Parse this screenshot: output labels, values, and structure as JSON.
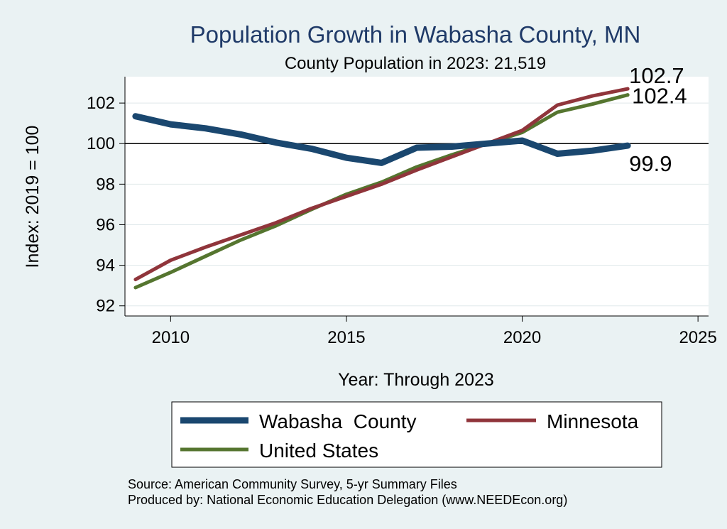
{
  "chart_data": {
    "type": "line",
    "title": "Population Growth in Wabasha County, MN",
    "subtitle": "County Population in 2023: 21,519",
    "xlabel": "Year: Through 2023",
    "ylabel": "Index: 2019 = 100",
    "xlim": [
      2008.7,
      2025.3
    ],
    "ylim": [
      91.5,
      103.3
    ],
    "x_ticks": [
      2010,
      2015,
      2020,
      2025
    ],
    "y_ticks": [
      92,
      94,
      96,
      98,
      100,
      102
    ],
    "reference_line": 100,
    "x": [
      2009,
      2010,
      2011,
      2012,
      2013,
      2014,
      2015,
      2016,
      2017,
      2018,
      2019,
      2020,
      2021,
      2022,
      2023
    ],
    "series": [
      {
        "name": "Wabasha  County",
        "color": "#1a476f",
        "end_label": "99.9",
        "values": [
          101.35,
          100.95,
          100.75,
          100.45,
          100.05,
          99.75,
          99.3,
          99.05,
          99.8,
          99.85,
          100.0,
          100.15,
          99.5,
          99.65,
          99.9
        ]
      },
      {
        "name": "Minnesota",
        "color": "#90353b",
        "end_label": "102.7",
        "values": [
          93.3,
          94.25,
          94.9,
          95.5,
          96.1,
          96.8,
          97.4,
          98.0,
          98.7,
          99.35,
          100.0,
          100.65,
          101.9,
          102.35,
          102.7
        ]
      },
      {
        "name": "United States",
        "color": "#55752f",
        "end_label": "102.4",
        "values": [
          92.9,
          93.65,
          94.45,
          95.25,
          95.95,
          96.75,
          97.5,
          98.1,
          98.85,
          99.45,
          100.0,
          100.55,
          101.55,
          101.95,
          102.4
        ]
      }
    ],
    "legend_position": "bottom",
    "source_note": "Source: American Community Survey, 5-yr Summary Files",
    "producer_note": "Produced by: National Economic Education Delegation (www.NEEDEcon.org)"
  }
}
